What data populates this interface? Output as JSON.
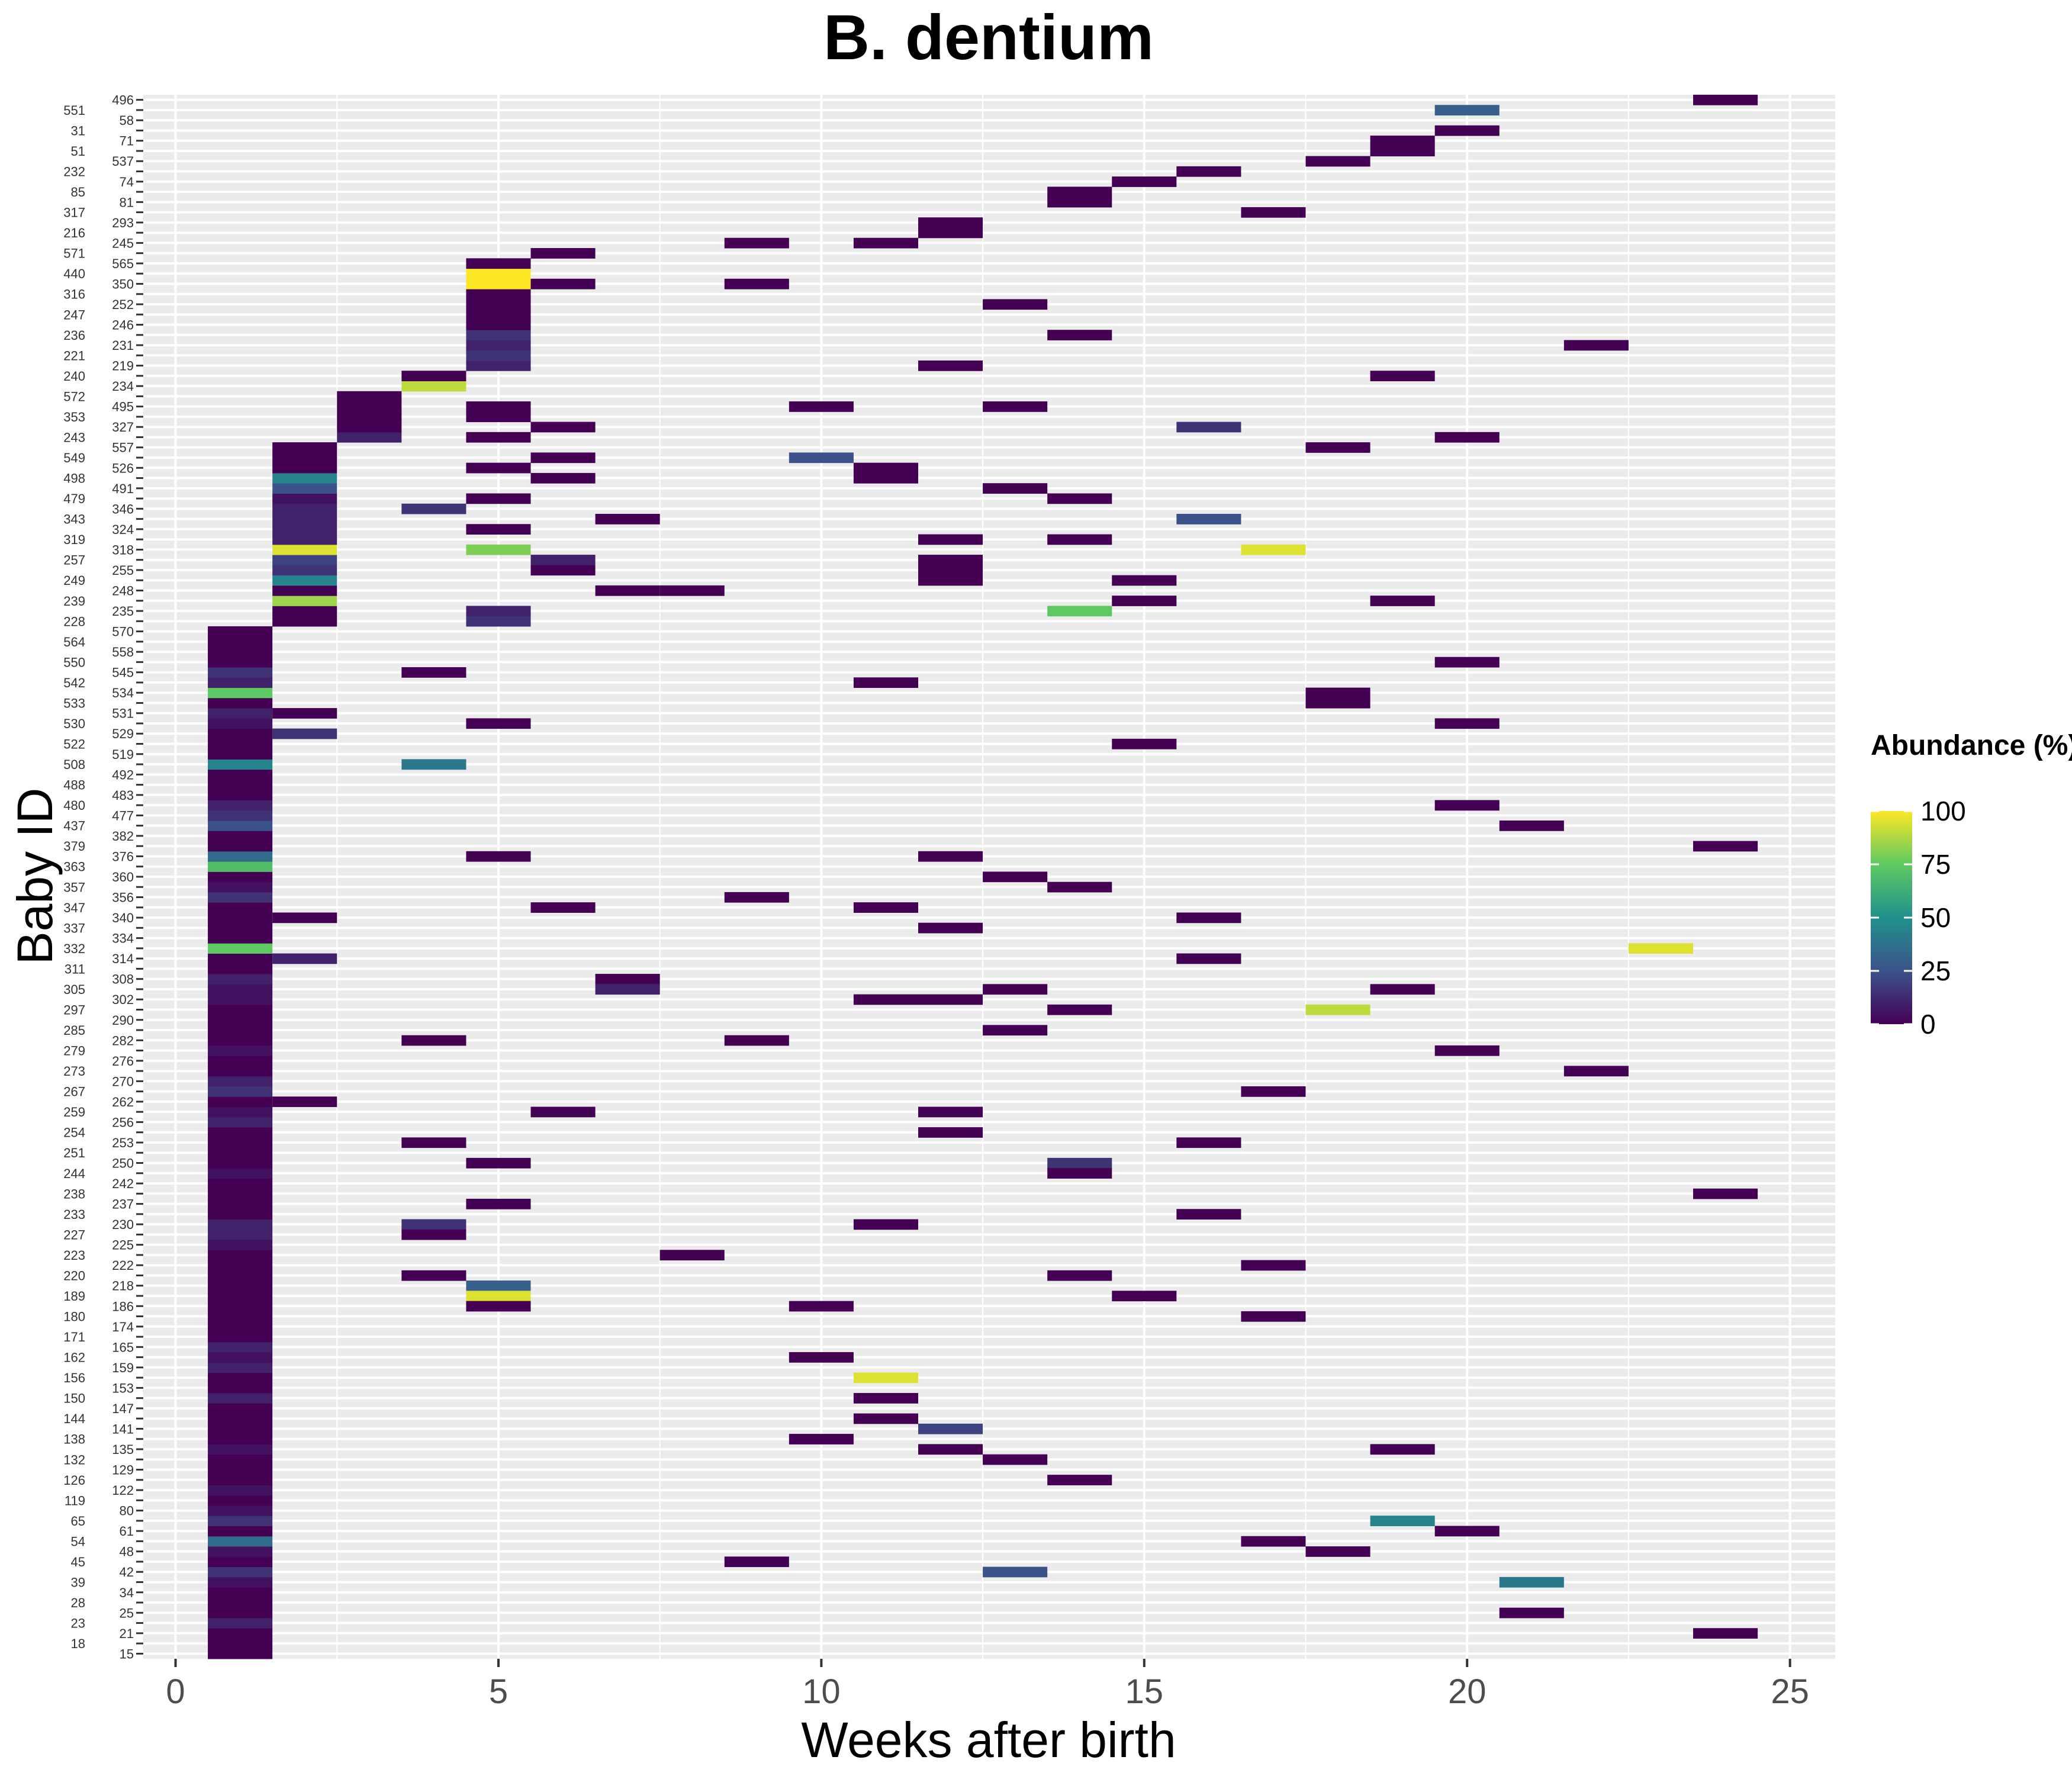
{
  "chart_data": {
    "type": "heatmap",
    "title": "B. dentium",
    "xlabel": "Weeks after birth",
    "ylabel": "Baby ID",
    "xlim": [
      -0.5,
      25.7
    ],
    "xticks": [
      0,
      5,
      10,
      15,
      20,
      25
    ],
    "legend": {
      "title": "Abundance (%)",
      "position": "right",
      "min": 0,
      "max": 100,
      "ticks": [
        100,
        75,
        50,
        25,
        0
      ]
    },
    "colormap": [
      "#440154",
      "#3b528b",
      "#21918c",
      "#5ec962",
      "#fde725"
    ],
    "grid": true,
    "rows": [
      "15",
      "18",
      "21",
      "23",
      "25",
      "28",
      "34",
      "39",
      "42",
      "45",
      "48",
      "54",
      "61",
      "65",
      "80",
      "119",
      "122",
      "126",
      "129",
      "132",
      "135",
      "138",
      "141",
      "144",
      "147",
      "150",
      "153",
      "156",
      "159",
      "162",
      "165",
      "171",
      "174",
      "180",
      "186",
      "189",
      "218",
      "220",
      "222",
      "223",
      "225",
      "227",
      "230",
      "233",
      "237",
      "238",
      "242",
      "244",
      "250",
      "251",
      "253",
      "254",
      "256",
      "259",
      "262",
      "267",
      "270",
      "273",
      "276",
      "279",
      "282",
      "285",
      "290",
      "297",
      "302",
      "305",
      "308",
      "311",
      "314",
      "332",
      "334",
      "337",
      "340",
      "347",
      "356",
      "357",
      "360",
      "363",
      "376",
      "379",
      "382",
      "437",
      "477",
      "480",
      "483",
      "488",
      "492",
      "508",
      "519",
      "522",
      "529",
      "530",
      "531",
      "533",
      "534",
      "542",
      "545",
      "550",
      "558",
      "564",
      "570",
      "228",
      "235",
      "239",
      "248",
      "249",
      "255",
      "257",
      "318",
      "319",
      "324",
      "343",
      "346",
      "479",
      "491",
      "498",
      "526",
      "549",
      "557",
      "243",
      "327",
      "353",
      "495",
      "572",
      "234",
      "240",
      "219",
      "221",
      "231",
      "236",
      "246",
      "247",
      "252",
      "316",
      "350",
      "440",
      "565",
      "571",
      "245",
      "216",
      "293",
      "317",
      "81",
      "85",
      "74",
      "232",
      "537",
      "51",
      "71",
      "31",
      "58",
      "551",
      "496"
    ],
    "cells": [
      [
        "15",
        1,
        0
      ],
      [
        "18",
        1,
        0
      ],
      [
        "21",
        1,
        0
      ],
      [
        "23",
        1,
        10
      ],
      [
        "25",
        1,
        0
      ],
      [
        "28",
        1,
        0
      ],
      [
        "34",
        1,
        0
      ],
      [
        "39",
        1,
        5
      ],
      [
        "42",
        1,
        15
      ],
      [
        "45",
        1,
        0
      ],
      [
        "48",
        1,
        5
      ],
      [
        "54",
        1,
        35
      ],
      [
        "61",
        1,
        0
      ],
      [
        "65",
        1,
        15
      ],
      [
        "80",
        1,
        5
      ],
      [
        "119",
        1,
        0
      ],
      [
        "122",
        1,
        5
      ],
      [
        "126",
        1,
        0
      ],
      [
        "129",
        1,
        0
      ],
      [
        "132",
        1,
        0
      ],
      [
        "135",
        1,
        5
      ],
      [
        "138",
        1,
        0
      ],
      [
        "141",
        1,
        0
      ],
      [
        "144",
        1,
        0
      ],
      [
        "147",
        1,
        0
      ],
      [
        "150",
        1,
        10
      ],
      [
        "153",
        1,
        0
      ],
      [
        "156",
        1,
        0
      ],
      [
        "159",
        1,
        10
      ],
      [
        "162",
        1,
        5
      ],
      [
        "165",
        1,
        10
      ],
      [
        "171",
        1,
        0
      ],
      [
        "174",
        1,
        0
      ],
      [
        "180",
        1,
        0
      ],
      [
        "186",
        1,
        0
      ],
      [
        "189",
        1,
        0
      ],
      [
        "218",
        1,
        0
      ],
      [
        "220",
        1,
        0
      ],
      [
        "222",
        1,
        0
      ],
      [
        "223",
        1,
        0
      ],
      [
        "225",
        1,
        5
      ],
      [
        "227",
        1,
        10
      ],
      [
        "230",
        1,
        10
      ],
      [
        "233",
        1,
        0
      ],
      [
        "237",
        1,
        0
      ],
      [
        "238",
        1,
        0
      ],
      [
        "242",
        1,
        0
      ],
      [
        "244",
        1,
        5
      ],
      [
        "250",
        1,
        0
      ],
      [
        "251",
        1,
        0
      ],
      [
        "253",
        1,
        0
      ],
      [
        "254",
        1,
        0
      ],
      [
        "256",
        1,
        10
      ],
      [
        "259",
        1,
        5
      ],
      [
        "262",
        1,
        0
      ],
      [
        "267",
        1,
        15
      ],
      [
        "270",
        1,
        10
      ],
      [
        "273",
        1,
        0
      ],
      [
        "276",
        1,
        0
      ],
      [
        "279",
        1,
        5
      ],
      [
        "282",
        1,
        0
      ],
      [
        "285",
        1,
        0
      ],
      [
        "290",
        1,
        0
      ],
      [
        "297",
        1,
        0
      ],
      [
        "302",
        1,
        5
      ],
      [
        "305",
        1,
        5
      ],
      [
        "308",
        1,
        10
      ],
      [
        "311",
        1,
        0
      ],
      [
        "314",
        1,
        0
      ],
      [
        "332",
        1,
        75
      ],
      [
        "334",
        1,
        0
      ],
      [
        "337",
        1,
        0
      ],
      [
        "340",
        1,
        0
      ],
      [
        "347",
        1,
        0
      ],
      [
        "356",
        1,
        15
      ],
      [
        "357",
        1,
        5
      ],
      [
        "360",
        1,
        0
      ],
      [
        "363",
        1,
        70
      ],
      [
        "376",
        1,
        35
      ],
      [
        "379",
        1,
        0
      ],
      [
        "382",
        1,
        0
      ],
      [
        "437",
        1,
        25
      ],
      [
        "477",
        1,
        15
      ],
      [
        "480",
        1,
        10
      ],
      [
        "483",
        1,
        0
      ],
      [
        "488",
        1,
        0
      ],
      [
        "492",
        1,
        0
      ],
      [
        "508",
        1,
        45
      ],
      [
        "519",
        1,
        0
      ],
      [
        "522",
        1,
        0
      ],
      [
        "529",
        1,
        0
      ],
      [
        "530",
        1,
        5
      ],
      [
        "531",
        1,
        10
      ],
      [
        "533",
        1,
        0
      ],
      [
        "534",
        1,
        75
      ],
      [
        "542",
        1,
        10
      ],
      [
        "545",
        1,
        15
      ],
      [
        "550",
        1,
        0
      ],
      [
        "558",
        1,
        0
      ],
      [
        "564",
        1,
        0
      ],
      [
        "570",
        1,
        0
      ],
      [
        "228",
        2,
        0
      ],
      [
        "235",
        2,
        0
      ],
      [
        "239",
        2,
        85
      ],
      [
        "248",
        2,
        0
      ],
      [
        "249",
        2,
        45
      ],
      [
        "255",
        2,
        15
      ],
      [
        "257",
        2,
        20
      ],
      [
        "318",
        2,
        95
      ],
      [
        "319",
        2,
        10
      ],
      [
        "324",
        2,
        10
      ],
      [
        "343",
        2,
        10
      ],
      [
        "346",
        2,
        10
      ],
      [
        "479",
        2,
        5
      ],
      [
        "491",
        2,
        25
      ],
      [
        "498",
        2,
        45
      ],
      [
        "526",
        2,
        0
      ],
      [
        "549",
        2,
        0
      ],
      [
        "557",
        2,
        0
      ],
      [
        "529",
        2,
        15
      ],
      [
        "531",
        2,
        0
      ],
      [
        "340",
        2,
        0
      ],
      [
        "314",
        2,
        10
      ],
      [
        "262",
        2,
        0
      ],
      [
        "243",
        3,
        10
      ],
      [
        "327",
        3,
        0
      ],
      [
        "353",
        3,
        0
      ],
      [
        "495",
        3,
        0
      ],
      [
        "572",
        3,
        0
      ],
      [
        "234",
        4,
        90
      ],
      [
        "240",
        4,
        0
      ],
      [
        "545",
        4,
        0
      ],
      [
        "508",
        4,
        40
      ],
      [
        "346",
        4,
        15
      ],
      [
        "282",
        4,
        0
      ],
      [
        "253",
        4,
        0
      ],
      [
        "230",
        4,
        15
      ],
      [
        "227",
        4,
        0
      ],
      [
        "220",
        4,
        0
      ],
      [
        "219",
        5,
        10
      ],
      [
        "221",
        5,
        15
      ],
      [
        "231",
        5,
        10
      ],
      [
        "236",
        5,
        15
      ],
      [
        "246",
        5,
        0
      ],
      [
        "247",
        5,
        0
      ],
      [
        "252",
        5,
        0
      ],
      [
        "316",
        5,
        0
      ],
      [
        "350",
        5,
        100
      ],
      [
        "440",
        5,
        100
      ],
      [
        "565",
        5,
        0
      ],
      [
        "353",
        5,
        0
      ],
      [
        "495",
        5,
        0
      ],
      [
        "243",
        5,
        0
      ],
      [
        "526",
        5,
        0
      ],
      [
        "479",
        5,
        0
      ],
      [
        "324",
        5,
        0
      ],
      [
        "318",
        5,
        80
      ],
      [
        "235",
        5,
        10
      ],
      [
        "228",
        5,
        15
      ],
      [
        "530",
        5,
        0
      ],
      [
        "376",
        5,
        0
      ],
      [
        "250",
        5,
        0
      ],
      [
        "237",
        5,
        0
      ],
      [
        "218",
        5,
        30
      ],
      [
        "189",
        5,
        95
      ],
      [
        "186",
        5,
        0
      ],
      [
        "571",
        6,
        0
      ],
      [
        "350",
        6,
        0
      ],
      [
        "327",
        6,
        0
      ],
      [
        "549",
        6,
        0
      ],
      [
        "498",
        6,
        0
      ],
      [
        "255",
        6,
        0
      ],
      [
        "257",
        6,
        10
      ],
      [
        "347",
        6,
        0
      ],
      [
        "259",
        6,
        0
      ],
      [
        "343",
        7,
        0
      ],
      [
        "248",
        7,
        0
      ],
      [
        "308",
        7,
        0
      ],
      [
        "305",
        7,
        10
      ],
      [
        "248",
        8,
        0
      ],
      [
        "223",
        8,
        0
      ],
      [
        "245",
        9,
        0
      ],
      [
        "350",
        9,
        0
      ],
      [
        "356",
        9,
        0
      ],
      [
        "282",
        9,
        0
      ],
      [
        "45",
        9,
        0
      ],
      [
        "495",
        10,
        0
      ],
      [
        "549",
        10,
        25
      ],
      [
        "186",
        10,
        0
      ],
      [
        "162",
        10,
        0
      ],
      [
        "138",
        10,
        0
      ],
      [
        "245",
        11,
        0
      ],
      [
        "526",
        11,
        0
      ],
      [
        "498",
        11,
        0
      ],
      [
        "542",
        11,
        0
      ],
      [
        "347",
        11,
        0
      ],
      [
        "302",
        11,
        0
      ],
      [
        "230",
        11,
        0
      ],
      [
        "156",
        11,
        95
      ],
      [
        "150",
        11,
        0
      ],
      [
        "144",
        11,
        0
      ],
      [
        "216",
        12,
        0
      ],
      [
        "293",
        12,
        0
      ],
      [
        "219",
        12,
        0
      ],
      [
        "319",
        12,
        0
      ],
      [
        "255",
        12,
        0
      ],
      [
        "257",
        12,
        0
      ],
      [
        "249",
        12,
        0
      ],
      [
        "376",
        12,
        0
      ],
      [
        "337",
        12,
        0
      ],
      [
        "302",
        12,
        0
      ],
      [
        "259",
        12,
        0
      ],
      [
        "254",
        12,
        0
      ],
      [
        "141",
        12,
        20
      ],
      [
        "135",
        12,
        0
      ],
      [
        "252",
        13,
        0
      ],
      [
        "495",
        13,
        0
      ],
      [
        "491",
        13,
        0
      ],
      [
        "360",
        13,
        0
      ],
      [
        "305",
        13,
        0
      ],
      [
        "285",
        13,
        0
      ],
      [
        "42",
        13,
        25
      ],
      [
        "132",
        13,
        0
      ],
      [
        "85",
        14,
        0
      ],
      [
        "81",
        14,
        0
      ],
      [
        "236",
        14,
        0
      ],
      [
        "479",
        14,
        0
      ],
      [
        "319",
        14,
        0
      ],
      [
        "357",
        14,
        0
      ],
      [
        "297",
        14,
        0
      ],
      [
        "250",
        14,
        15
      ],
      [
        "244",
        14,
        0
      ],
      [
        "220",
        14,
        0
      ],
      [
        "235",
        14,
        75
      ],
      [
        "126",
        14,
        0
      ],
      [
        "74",
        15,
        0
      ],
      [
        "249",
        15,
        0
      ],
      [
        "239",
        15,
        0
      ],
      [
        "522",
        15,
        0
      ],
      [
        "189",
        15,
        0
      ],
      [
        "232",
        16,
        0
      ],
      [
        "327",
        16,
        15
      ],
      [
        "343",
        16,
        25
      ],
      [
        "340",
        16,
        0
      ],
      [
        "314",
        16,
        0
      ],
      [
        "253",
        16,
        0
      ],
      [
        "233",
        16,
        0
      ],
      [
        "317",
        17,
        0
      ],
      [
        "318",
        17,
        95
      ],
      [
        "267",
        17,
        0
      ],
      [
        "222",
        17,
        0
      ],
      [
        "180",
        17,
        0
      ],
      [
        "54",
        17,
        0
      ],
      [
        "537",
        18,
        0
      ],
      [
        "557",
        18,
        0
      ],
      [
        "533",
        18,
        0
      ],
      [
        "534",
        18,
        0
      ],
      [
        "297",
        18,
        90
      ],
      [
        "48",
        18,
        0
      ],
      [
        "51",
        19,
        0
      ],
      [
        "71",
        19,
        0
      ],
      [
        "240",
        19,
        0
      ],
      [
        "239",
        19,
        0
      ],
      [
        "305",
        19,
        0
      ],
      [
        "65",
        19,
        45
      ],
      [
        "135",
        19,
        0
      ],
      [
        "551",
        20,
        30
      ],
      [
        "31",
        20,
        0
      ],
      [
        "243",
        20,
        0
      ],
      [
        "550",
        20,
        0
      ],
      [
        "530",
        20,
        0
      ],
      [
        "480",
        20,
        0
      ],
      [
        "279",
        20,
        0
      ],
      [
        "61",
        20,
        0
      ],
      [
        "437",
        21,
        0
      ],
      [
        "39",
        21,
        40
      ],
      [
        "25",
        21,
        0
      ],
      [
        "231",
        22,
        0
      ],
      [
        "273",
        22,
        0
      ],
      [
        "332",
        23,
        95
      ],
      [
        "496",
        24,
        0
      ],
      [
        "379",
        24,
        0
      ],
      [
        "238",
        24,
        0
      ],
      [
        "21",
        24,
        0
      ]
    ]
  }
}
